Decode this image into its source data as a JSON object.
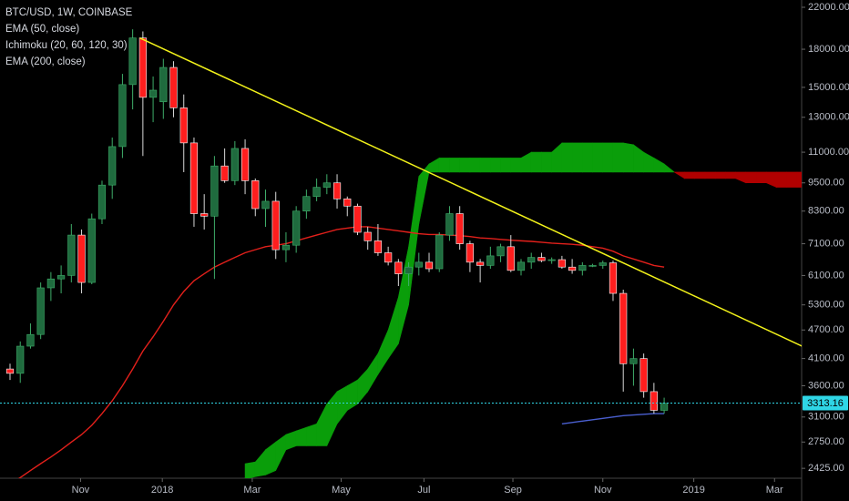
{
  "chart_data": {
    "type": "candlestick",
    "title": "BTC/USD, 1W, COINBASE",
    "categories": [
      null,
      null,
      null,
      null,
      null,
      null,
      null,
      null,
      null,
      null,
      null,
      null,
      null,
      null,
      null,
      null,
      null,
      null,
      null,
      null,
      null,
      null,
      null,
      null,
      null,
      null,
      null,
      null,
      null,
      null,
      null,
      null,
      null,
      null,
      null,
      null,
      null,
      null,
      null,
      null,
      null,
      null,
      null,
      null,
      null,
      null,
      null,
      null,
      null,
      null,
      null,
      null,
      null,
      null,
      null,
      null,
      null,
      null,
      null,
      null,
      null,
      null,
      null,
      null,
      null,
      null,
      null,
      null,
      null,
      null,
      null,
      null,
      null,
      null,
      null,
      null,
      null,
      null,
      null
    ],
    "open": [
      3900,
      3820,
      4350,
      4600,
      5750,
      6000,
      6100,
      7400,
      5900,
      8000,
      9400,
      11300,
      15200,
      19000,
      14300,
      14000,
      16500,
      13600,
      11500,
      8200,
      8100,
      10300,
      9600,
      11200,
      9600,
      8400,
      8700,
      6900,
      7050,
      8300,
      8900,
      9300,
      9500,
      8800,
      8500,
      7500,
      7200,
      6800,
      6500,
      6150,
      6350,
      6500,
      6300,
      7400,
      8200,
      7100,
      6500,
      6400,
      6700,
      7000,
      6250,
      6500,
      6650,
      6550,
      6580,
      6350,
      6250,
      6400,
      6400,
      6480,
      5600,
      4000,
      4100,
      3500,
      3200,
      null,
      null,
      null,
      null,
      null,
      null,
      null,
      null,
      null,
      null,
      null,
      null,
      null,
      null
    ],
    "high": [
      4000,
      4450,
      4850,
      5900,
      6200,
      6400,
      7800,
      7600,
      8200,
      9600,
      11800,
      16000,
      19800,
      19600,
      15800,
      17200,
      17000,
      14500,
      11800,
      9000,
      10800,
      11200,
      11600,
      11700,
      9700,
      9200,
      9100,
      7500,
      8500,
      9200,
      9700,
      9900,
      9900,
      8900,
      8600,
      7700,
      7800,
      7000,
      6600,
      6500,
      6800,
      6800,
      7500,
      8500,
      8500,
      7200,
      6600,
      7000,
      7100,
      7400,
      6600,
      6800,
      6800,
      6650,
      6700,
      6600,
      6500,
      6450,
      6550,
      6550,
      5700,
      4300,
      4200,
      3650,
      3400,
      null,
      null,
      null,
      null,
      null,
      null,
      null,
      null,
      null,
      null,
      null,
      null,
      null,
      null
    ],
    "low": [
      3700,
      3650,
      4300,
      4500,
      5400,
      5600,
      5900,
      5600,
      5850,
      7800,
      8800,
      10700,
      13500,
      10800,
      12700,
      12900,
      13000,
      10000,
      7700,
      7600,
      6000,
      9500,
      9400,
      9000,
      8100,
      7700,
      6600,
      6500,
      6800,
      8000,
      8700,
      9000,
      8400,
      8100,
      7400,
      6900,
      6700,
      6400,
      5800,
      5800,
      6100,
      6200,
      6200,
      7200,
      6900,
      6200,
      5900,
      6300,
      6500,
      6200,
      6100,
      6300,
      6500,
      6450,
      6300,
      6150,
      6100,
      6350,
      6300,
      5400,
      3500,
      3600,
      3400,
      3150,
      3150,
      null,
      null,
      null,
      null,
      null,
      null,
      null,
      null,
      null,
      null,
      null,
      null,
      null,
      null
    ],
    "close": [
      3820,
      4350,
      4600,
      5750,
      6000,
      6100,
      7400,
      5900,
      8000,
      9400,
      11300,
      15200,
      19000,
      14300,
      14800,
      16500,
      13600,
      11500,
      8200,
      8100,
      10300,
      9600,
      11200,
      9600,
      8400,
      8700,
      6900,
      7050,
      8300,
      8900,
      9300,
      9500,
      8800,
      8500,
      7500,
      7200,
      6800,
      6500,
      6150,
      6350,
      6500,
      6300,
      7400,
      8200,
      7100,
      6500,
      6400,
      6700,
      7000,
      6250,
      6500,
      6650,
      6550,
      6580,
      6350,
      6250,
      6400,
      6400,
      6480,
      5600,
      4000,
      4100,
      3500,
      3200,
      3310,
      null,
      null,
      null,
      null,
      null,
      null,
      null,
      null,
      null,
      null,
      null,
      null,
      null,
      null
    ],
    "up_color": "#1f6b3e",
    "down_color": "#ff1e1e",
    "series": [
      {
        "name": "EMA (50, close)",
        "color": "#e3201b",
        "values": [
          2250,
          2320,
          2400,
          2480,
          2560,
          2650,
          2750,
          2850,
          2980,
          3150,
          3350,
          3600,
          3900,
          4250,
          4550,
          4900,
          5300,
          5650,
          5950,
          6150,
          6350,
          6500,
          6650,
          6800,
          6900,
          7000,
          7050,
          7100,
          7200,
          7300,
          7400,
          7500,
          7600,
          7650,
          7700,
          7700,
          7650,
          7600,
          7550,
          7500,
          7450,
          7420,
          7420,
          7400,
          7380,
          7350,
          7300,
          7280,
          7250,
          7220,
          7200,
          7180,
          7150,
          7120,
          7100,
          7080,
          7050,
          7000,
          6950,
          6850,
          6700,
          6600,
          6500,
          6400,
          6350,
          null,
          null,
          null,
          null,
          null,
          null,
          null,
          null,
          null,
          null,
          null,
          null,
          null,
          null
        ]
      },
      {
        "name": "EMA (200, close)",
        "color": "#4a5fd0",
        "values": [
          null,
          null,
          null,
          null,
          null,
          null,
          null,
          null,
          null,
          null,
          null,
          null,
          null,
          null,
          null,
          null,
          null,
          null,
          null,
          null,
          null,
          null,
          null,
          null,
          null,
          null,
          null,
          null,
          null,
          null,
          null,
          null,
          null,
          null,
          null,
          null,
          null,
          null,
          null,
          null,
          null,
          null,
          null,
          null,
          null,
          null,
          null,
          null,
          null,
          null,
          null,
          null,
          null,
          null,
          3000,
          3020,
          3040,
          3060,
          3080,
          3100,
          3120,
          3130,
          3140,
          3150,
          3150,
          null,
          null,
          null,
          null,
          null,
          null,
          null,
          null,
          null,
          null,
          null,
          null,
          null,
          null
        ]
      }
    ],
    "ichimoku": {
      "name": "Ichimoku (20, 60, 120, 30)",
      "up_color": "#0a9e0a",
      "down_color": "#b00000",
      "span_a": [
        null,
        null,
        null,
        null,
        null,
        null,
        null,
        null,
        null,
        null,
        null,
        null,
        null,
        null,
        null,
        null,
        null,
        null,
        null,
        null,
        null,
        null,
        null,
        2480,
        2500,
        2650,
        2750,
        2850,
        2900,
        2950,
        3000,
        3300,
        3500,
        3600,
        3700,
        3900,
        4200,
        4700,
        5500,
        7000,
        9800,
        10400,
        10700,
        10700,
        10700,
        10700,
        10700,
        10700,
        10700,
        10700,
        10700,
        11000,
        11000,
        11000,
        11500,
        11500,
        11500,
        11500,
        11500,
        11500,
        11500,
        11400,
        11000,
        10700,
        10400,
        10000,
        9700,
        9700,
        9700,
        9700,
        9700,
        9700,
        9500,
        9500,
        9500,
        9300,
        9300,
        9300,
        9300
      ],
      "span_b": [
        null,
        null,
        null,
        null,
        null,
        null,
        null,
        null,
        null,
        null,
        null,
        null,
        null,
        null,
        null,
        null,
        null,
        null,
        null,
        null,
        null,
        null,
        null,
        2300,
        2330,
        2350,
        2400,
        2650,
        2700,
        2700,
        2700,
        2700,
        3000,
        3200,
        3300,
        3500,
        3800,
        4100,
        4400,
        5300,
        7800,
        10000,
        10000,
        10000,
        10000,
        10000,
        10000,
        10000,
        10000,
        10000,
        10000,
        10000,
        10000,
        10000,
        10000,
        10000,
        10000,
        10000,
        10000,
        10000,
        10000,
        10000,
        10000,
        10000,
        10000,
        10000,
        10000,
        10000,
        10000,
        10000,
        10000,
        10000,
        10000,
        10000,
        10000,
        10000,
        10000,
        10000,
        10000
      ]
    },
    "trendline": {
      "color": "#f2f21a",
      "points": [
        {
          "x": 12.7,
          "y": 19000
        },
        {
          "x": 77.5,
          "y": 4350
        }
      ]
    },
    "price_line": {
      "value": 3313.16,
      "color": "#2fd6e6"
    },
    "log_scale": true,
    "ylim": [
      2313,
      22780
    ],
    "yticks": [
      {
        "value": 22000,
        "label": "22000.00"
      },
      {
        "value": 18000,
        "label": "18000.00"
      },
      {
        "value": 15000,
        "label": "15000.00"
      },
      {
        "value": 13000,
        "label": "13000.00"
      },
      {
        "value": 11000,
        "label": "11000.00"
      },
      {
        "value": 9500,
        "label": "9500.00"
      },
      {
        "value": 8300,
        "label": "8300.00"
      },
      {
        "value": 7100,
        "label": "7100.00"
      },
      {
        "value": 6100,
        "label": "6100.00"
      },
      {
        "value": 5300,
        "label": "5300.00"
      },
      {
        "value": 4700,
        "label": "4700.00"
      },
      {
        "value": 4100,
        "label": "4100.00"
      },
      {
        "value": 3600,
        "label": "3600.00"
      },
      {
        "value": 3100,
        "label": "3100.00"
      },
      {
        "value": 2750,
        "label": "2750.00"
      },
      {
        "value": 2425,
        "label": "2425.00"
      }
    ],
    "xticks": [
      {
        "value": 6.9,
        "label": "Nov"
      },
      {
        "value": 14.9,
        "label": "2018"
      },
      {
        "value": 23.7,
        "label": "Mar"
      },
      {
        "value": 32.4,
        "label": "May"
      },
      {
        "value": 40.5,
        "label": "Jul"
      },
      {
        "value": 49.2,
        "label": "Sep"
      },
      {
        "value": 58.0,
        "label": "Nov"
      },
      {
        "value": 66.9,
        "label": "2019"
      },
      {
        "value": 74.8,
        "label": "Mar"
      }
    ],
    "grid": false
  }
}
